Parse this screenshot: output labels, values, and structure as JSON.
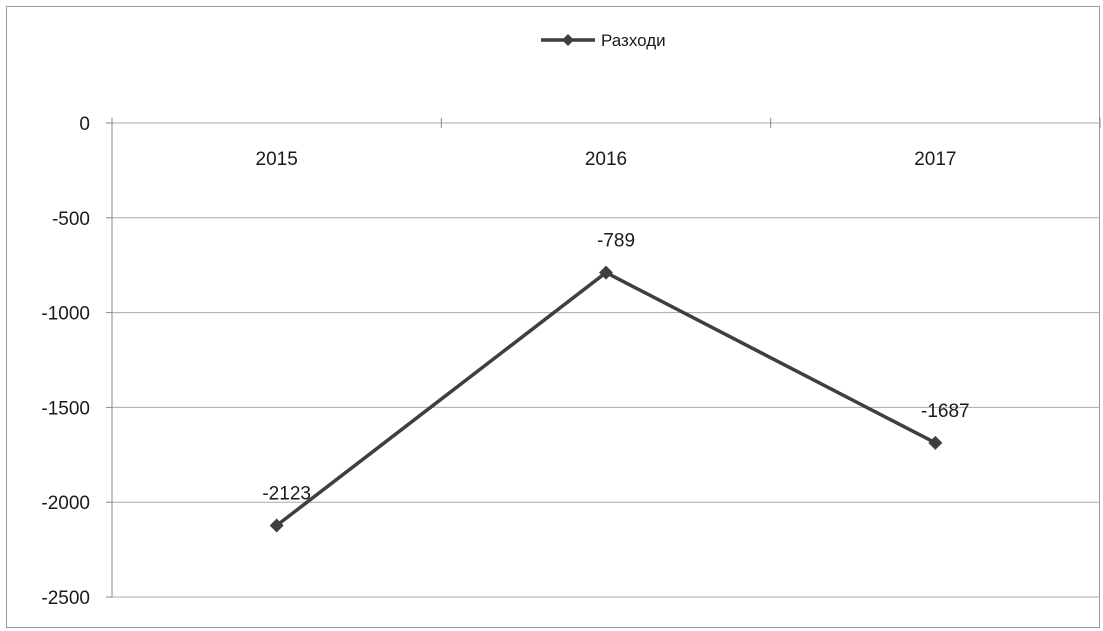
{
  "chart_data": {
    "type": "line",
    "categories": [
      "2015",
      "2016",
      "2017"
    ],
    "series": [
      {
        "name": "Разходи",
        "values": [
          -2123,
          -789,
          -1687
        ],
        "data_labels": [
          "-2123",
          "-789",
          "-1687"
        ],
        "color": "#3f3f3f",
        "marker": "diamond"
      }
    ],
    "ylim": [
      -2500,
      0
    ],
    "yticks": [
      0,
      -500,
      -1000,
      -1500,
      -2000,
      -2500
    ],
    "ytick_labels": [
      "0",
      "-500",
      "-1000",
      "-1500",
      "-2000",
      "-2500"
    ],
    "category_axis_position": "top",
    "grid": true,
    "legend_position": "top-center",
    "title": "",
    "xlabel": "",
    "ylabel": ""
  }
}
